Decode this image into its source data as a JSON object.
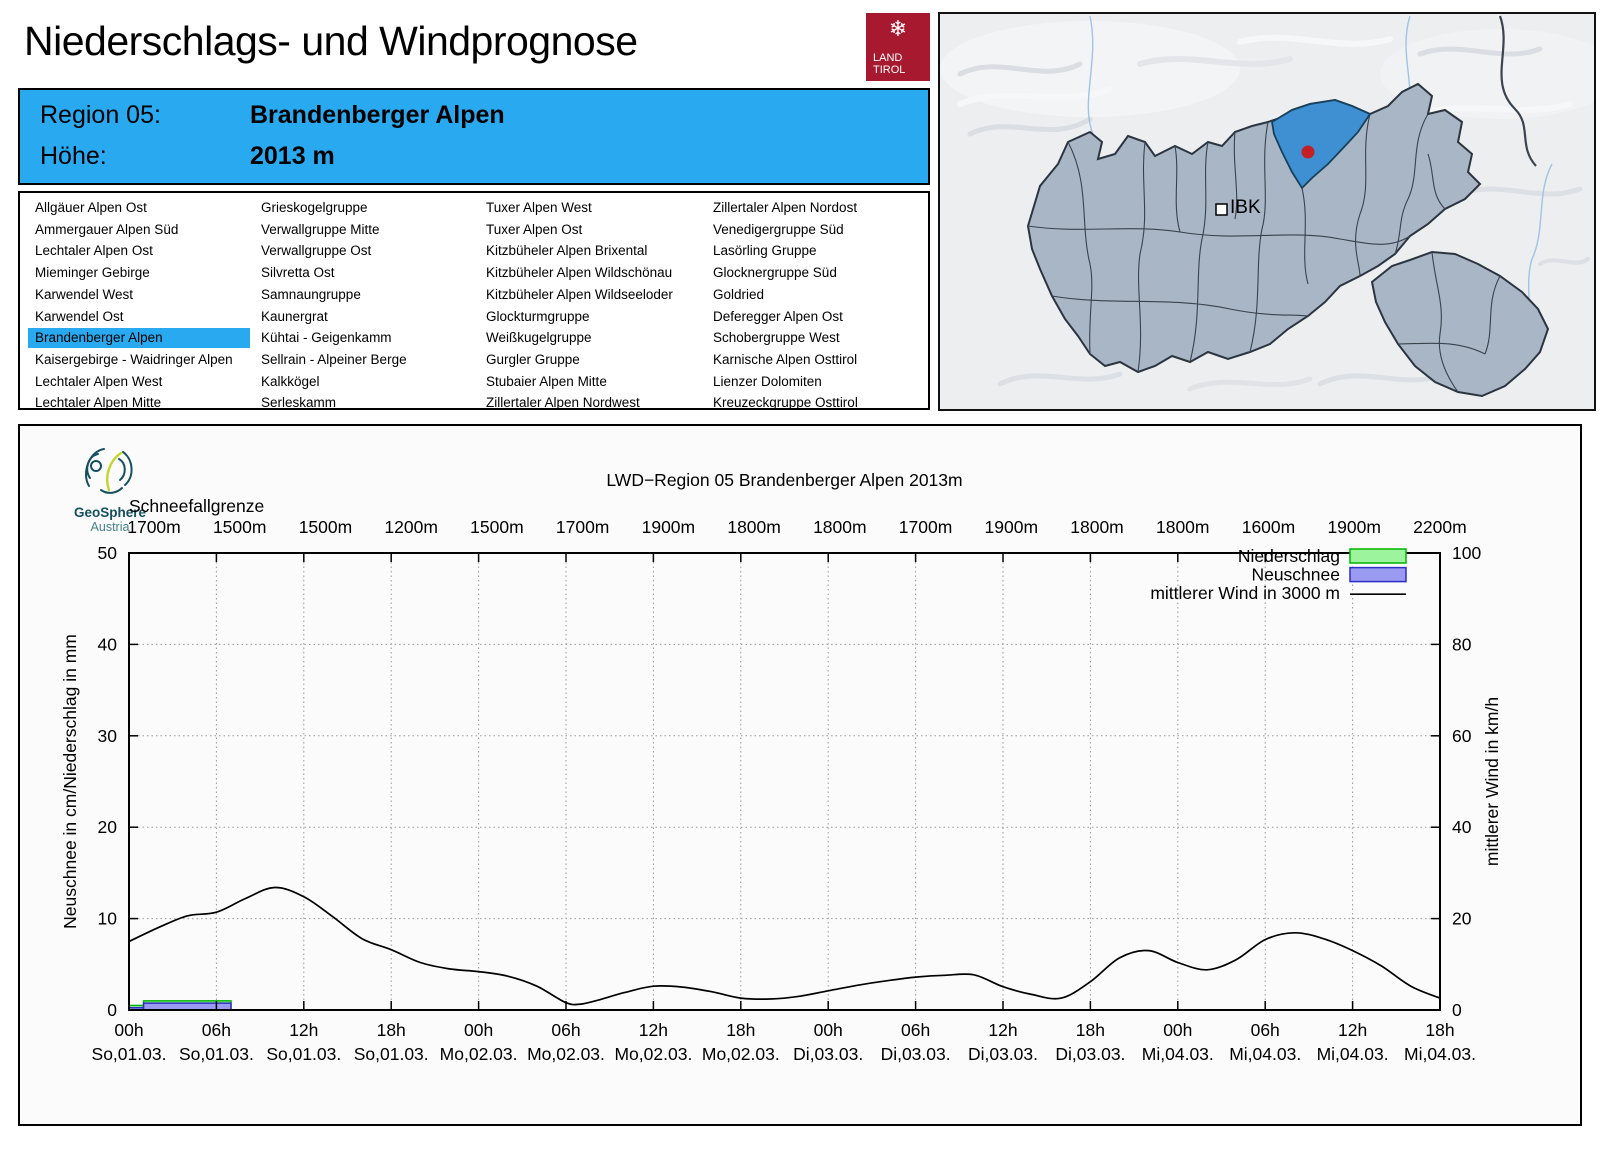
{
  "header": {
    "title": "Niederschlags- und Windprognose"
  },
  "logo": {
    "line1": "LAND",
    "line2": "TIROL",
    "icon": "snowflake-icon",
    "color": "#A6192E"
  },
  "region_box": {
    "region_label": "Region 05:",
    "region_name": "Brandenberger Alpen",
    "altitude_label": "Höhe:",
    "altitude_value": "2013 m",
    "background": "#29A9F0"
  },
  "region_list": {
    "selected": "Brandenberger Alpen",
    "columns": [
      [
        "Allgäuer Alpen Ost",
        "Ammergauer Alpen Süd",
        "Lechtaler Alpen Ost",
        "Mieminger Gebirge",
        "Karwendel West",
        "Karwendel Ost",
        "Brandenberger Alpen",
        "Kaisergebirge - Waidringer Alpen",
        "Lechtaler Alpen West",
        "Lechtaler Alpen Mitte"
      ],
      [
        "Grieskogelgruppe",
        "Verwallgruppe Mitte",
        "Verwallgruppe Ost",
        "Silvretta Ost",
        "Samnaungruppe",
        "Kaunergrat",
        "Kühtai - Geigenkamm",
        "Sellrain - Alpeiner Berge",
        "Kalkkögel",
        "Serleskamm"
      ],
      [
        "Tuxer Alpen West",
        "Tuxer Alpen Ost",
        "Kitzbüheler Alpen Brixental",
        "Kitzbüheler Alpen Wildschönau",
        "Kitzbüheler Alpen Wildseeloder",
        "Glockturmgruppe",
        "Weißkugelgruppe",
        "Gurgler Gruppe",
        "Stubaier Alpen Mitte",
        "Zillertaler Alpen Nordwest"
      ],
      [
        "Zillertaler Alpen Nordost",
        "Venedigergruppe Süd",
        "Lasörling Gruppe",
        "Glocknergruppe Süd",
        "Goldried",
        "Deferegger Alpen Ost",
        "Schobergruppe West",
        "Karnische Alpen Osttirol",
        "Lienzer Dolomiten",
        "Kreuzeckgruppe Osttirol"
      ]
    ]
  },
  "map": {
    "ibk_label": "IBK",
    "region_fill": "#A9B6C6",
    "selected_fill": "#3F90D2",
    "marker_color": "#C32026"
  },
  "chart": {
    "title": "LWD−Region 05 Brandenberger Alpen 2013m",
    "provider": {
      "name": "GeoSphere",
      "country": "Austria"
    },
    "snowline": {
      "label": "Schneefallgrenze",
      "values": [
        "1700m",
        "1500m",
        "1500m",
        "1200m",
        "1500m",
        "1700m",
        "1900m",
        "1800m",
        "1800m",
        "1700m",
        "1900m",
        "1800m",
        "1800m",
        "1600m",
        "1900m",
        "2200m"
      ]
    },
    "legend": [
      {
        "label": "Niederschlag",
        "type": "box",
        "fill": "#9CF59C",
        "border": "#00B400"
      },
      {
        "label": "Neuschnee",
        "type": "box",
        "fill": "#9A9AF0",
        "border": "#2D2DC8"
      },
      {
        "label": "mittlerer Wind in 3000 m",
        "type": "line",
        "color": "#000000"
      }
    ],
    "axes": {
      "left_label": "Neuschnee in cm/Niederschlag in mm",
      "right_label": "mittlerer Wind in km/h",
      "left_ticks": [
        0,
        10,
        20,
        30,
        40,
        50
      ],
      "right_ticks": [
        0,
        20,
        40,
        60,
        80,
        100
      ],
      "left_max": 50,
      "right_max": 100
    },
    "x_ticks": [
      {
        "time": "00h",
        "date": "So,01.03."
      },
      {
        "time": "06h",
        "date": "So,01.03."
      },
      {
        "time": "12h",
        "date": "So,01.03."
      },
      {
        "time": "18h",
        "date": "So,01.03."
      },
      {
        "time": "00h",
        "date": "Mo,02.03."
      },
      {
        "time": "06h",
        "date": "Mo,02.03."
      },
      {
        "time": "12h",
        "date": "Mo,02.03."
      },
      {
        "time": "18h",
        "date": "Mo,02.03."
      },
      {
        "time": "00h",
        "date": "Di,03.03."
      },
      {
        "time": "06h",
        "date": "Di,03.03."
      },
      {
        "time": "12h",
        "date": "Di,03.03."
      },
      {
        "time": "18h",
        "date": "Di,03.03."
      },
      {
        "time": "00h",
        "date": "Mi,04.03."
      },
      {
        "time": "06h",
        "date": "Mi,04.03."
      },
      {
        "time": "12h",
        "date": "Mi,04.03."
      },
      {
        "time": "18h",
        "date": "Mi,04.03."
      }
    ]
  },
  "chart_data": {
    "type": "composite",
    "x_unit": "hours from So 01.03. 00h",
    "x_range": [
      0,
      90
    ],
    "grid": true,
    "legend_position": "top-right",
    "series": [
      {
        "name": "Niederschlag",
        "type": "bar",
        "unit": "mm",
        "axis": "left",
        "segments": [
          {
            "from": 0,
            "to": 1,
            "value": 0.5
          },
          {
            "from": 1,
            "to": 7,
            "value": 1.0
          }
        ]
      },
      {
        "name": "Neuschnee",
        "type": "bar",
        "unit": "cm",
        "axis": "left",
        "segments": [
          {
            "from": 0,
            "to": 1,
            "value": 0.25
          },
          {
            "from": 1,
            "to": 7,
            "value": 0.75
          }
        ]
      },
      {
        "name": "mittlerer Wind in 3000 m",
        "type": "line",
        "unit": "km/h",
        "axis": "right",
        "points": [
          [
            0,
            15
          ],
          [
            2,
            18
          ],
          [
            4,
            20.6
          ],
          [
            6,
            21.4
          ],
          [
            8,
            24.4
          ],
          [
            10,
            26.8
          ],
          [
            12,
            24.8
          ],
          [
            14,
            20.4
          ],
          [
            16,
            15.6
          ],
          [
            18,
            13.2
          ],
          [
            20,
            10.4
          ],
          [
            22,
            9
          ],
          [
            24,
            8.4
          ],
          [
            26,
            7.4
          ],
          [
            28,
            5.2
          ],
          [
            30,
            1.6
          ],
          [
            31,
            1.3
          ],
          [
            32,
            2
          ],
          [
            34,
            3.8
          ],
          [
            36,
            5.2
          ],
          [
            38,
            5
          ],
          [
            40,
            4
          ],
          [
            42,
            2.6
          ],
          [
            44,
            2.4
          ],
          [
            46,
            3
          ],
          [
            48,
            4.2
          ],
          [
            50,
            5.4
          ],
          [
            52,
            6.4
          ],
          [
            54,
            7.2
          ],
          [
            56,
            7.6
          ],
          [
            58,
            7.7
          ],
          [
            60,
            5.1
          ],
          [
            62,
            3.4
          ],
          [
            64,
            2.6
          ],
          [
            66,
            6.2
          ],
          [
            68,
            11.4
          ],
          [
            70,
            13
          ],
          [
            72,
            10.4
          ],
          [
            74,
            8.8
          ],
          [
            76,
            11
          ],
          [
            78,
            15.4
          ],
          [
            80,
            16.9
          ],
          [
            82,
            15.6
          ],
          [
            84,
            13
          ],
          [
            86,
            9.6
          ],
          [
            88,
            5.2
          ],
          [
            90,
            2.6
          ]
        ]
      }
    ]
  }
}
